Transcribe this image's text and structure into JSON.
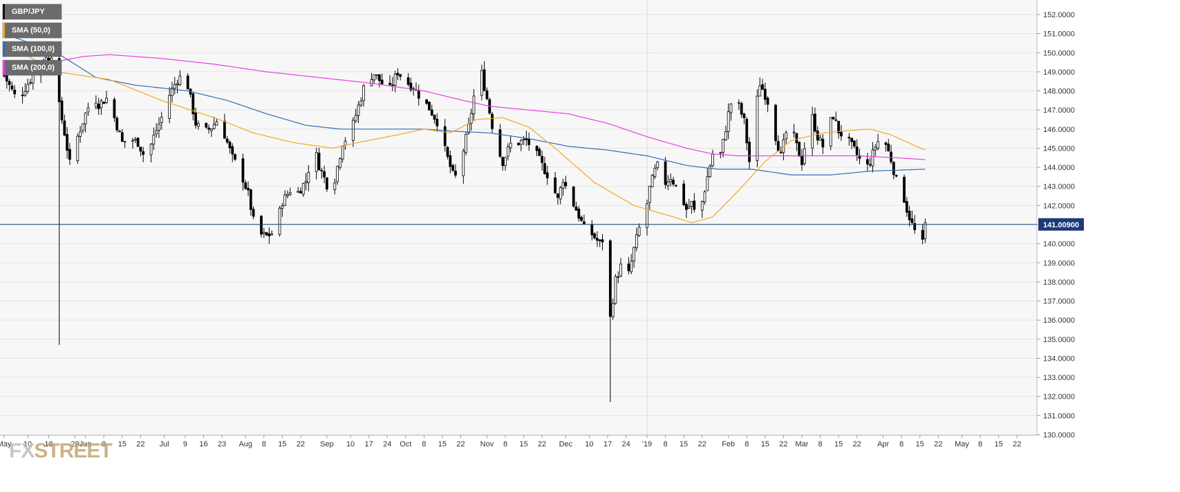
{
  "chart_data": {
    "type": "candlestick",
    "symbol": "GBP/JPY",
    "last_price": "141.00900",
    "ylim": [
      130,
      152
    ],
    "y_ticks": [
      "152.0000",
      "151.0000",
      "150.0000",
      "149.0000",
      "148.0000",
      "147.0000",
      "146.0000",
      "145.0000",
      "144.0000",
      "143.0000",
      "142.0000",
      "141.0000",
      "140.0000",
      "139.0000",
      "138.0000",
      "137.0000",
      "136.0000",
      "135.0000",
      "134.0000",
      "133.0000",
      "132.0000",
      "131.0000",
      "130.0000"
    ],
    "x_ticks": [
      "May",
      "10",
      "18",
      "28",
      "Jun",
      "8",
      "15",
      "22",
      "Jul",
      "9",
      "16",
      "23",
      "Aug",
      "8",
      "15",
      "22",
      "Sep",
      "10",
      "17",
      "24",
      "Oct",
      "8",
      "15",
      "22",
      "Nov",
      "8",
      "15",
      "22",
      "Dec",
      "10",
      "17",
      "24",
      "'19",
      "8",
      "15",
      "22",
      "Feb",
      "8",
      "15",
      "22",
      "Mar",
      "8",
      "15",
      "22",
      "Apr",
      "8",
      "15",
      "22",
      "May",
      "8",
      "15",
      "22"
    ],
    "x_tick_days": [
      0,
      9,
      17,
      27,
      31,
      38,
      45,
      52,
      61,
      69,
      76,
      83,
      92,
      99,
      106,
      113,
      123,
      132,
      139,
      146,
      153,
      160,
      167,
      174,
      184,
      191,
      198,
      205,
      214,
      223,
      230,
      237,
      245,
      252,
      259,
      266,
      276,
      283,
      290,
      297,
      304,
      311,
      318,
      325,
      335,
      342,
      349,
      356,
      365,
      372,
      379,
      386
    ],
    "date_range": [
      "May 2018",
      "May 22 2019"
    ],
    "series": [
      {
        "name": "GBP/JPY",
        "values": "daily OHLC candles"
      },
      {
        "name": "SMA (50,0)",
        "color": "#f5a623"
      },
      {
        "name": "SMA (100,0)",
        "color": "#2f6db5"
      },
      {
        "name": "SMA (200,0)",
        "color": "#e83ee8"
      }
    ],
    "price_anchors": [
      [
        0,
        148.8
      ],
      [
        5,
        147.5
      ],
      [
        10,
        148.6
      ],
      [
        14,
        149.5
      ],
      [
        17,
        149.8
      ],
      [
        19,
        150.1
      ],
      [
        20,
        149.0
      ],
      [
        21,
        147.2
      ],
      [
        23,
        145.8
      ],
      [
        25,
        144.2
      ],
      [
        28,
        145.6
      ],
      [
        31,
        146.8
      ],
      [
        34,
        147.8
      ],
      [
        36,
        147.3
      ],
      [
        39,
        147.6
      ],
      [
        42,
        146.6
      ],
      [
        45,
        145.3
      ],
      [
        48,
        145.5
      ],
      [
        51,
        145.3
      ],
      [
        54,
        144.4
      ],
      [
        57,
        145.6
      ],
      [
        60,
        146.6
      ],
      [
        63,
        147.8
      ],
      [
        66,
        148.6
      ],
      [
        69,
        148.9
      ],
      [
        71,
        147.6
      ],
      [
        73,
        146.3
      ],
      [
        76,
        145.8
      ],
      [
        79,
        146.1
      ],
      [
        82,
        146.6
      ],
      [
        84,
        145.7
      ],
      [
        87,
        144.5
      ],
      [
        90,
        143.8
      ],
      [
        93,
        142.6
      ],
      [
        95,
        141.2
      ],
      [
        97,
        140.5
      ],
      [
        100,
        140.4
      ],
      [
        103,
        140.6
      ],
      [
        106,
        142.2
      ],
      [
        109,
        142.8
      ],
      [
        112,
        142.7
      ],
      [
        115,
        143.3
      ],
      [
        118,
        145.1
      ],
      [
        120,
        144.1
      ],
      [
        123,
        143.1
      ],
      [
        126,
        143.4
      ],
      [
        129,
        145.3
      ],
      [
        132,
        145.8
      ],
      [
        135,
        147.2
      ],
      [
        138,
        148.6
      ],
      [
        141,
        148.9
      ],
      [
        144,
        148.4
      ],
      [
        147,
        148.1
      ],
      [
        150,
        149.0
      ],
      [
        153,
        148.5
      ],
      [
        156,
        148.2
      ],
      [
        159,
        147.6
      ],
      [
        162,
        147.1
      ],
      [
        165,
        146.4
      ],
      [
        168,
        144.9
      ],
      [
        171,
        143.6
      ],
      [
        173,
        143.4
      ],
      [
        175,
        144.9
      ],
      [
        177,
        146.1
      ],
      [
        179,
        147.7
      ],
      [
        181,
        148.6
      ],
      [
        182,
        148.9
      ],
      [
        184,
        147.6
      ],
      [
        186,
        146.2
      ],
      [
        188,
        145.0
      ],
      [
        190,
        144.3
      ],
      [
        193,
        145.2
      ],
      [
        196,
        145.3
      ],
      [
        199,
        145.4
      ],
      [
        202,
        144.9
      ],
      [
        205,
        144.1
      ],
      [
        208,
        143.4
      ],
      [
        211,
        142.3
      ],
      [
        213,
        143.4
      ],
      [
        215,
        142.6
      ],
      [
        218,
        141.8
      ],
      [
        221,
        140.8
      ],
      [
        224,
        140.5
      ],
      [
        227,
        140.0
      ],
      [
        229,
        140.4
      ],
      [
        230,
        139.2
      ],
      [
        231,
        136.1
      ],
      [
        233,
        138.1
      ],
      [
        235,
        138.8
      ],
      [
        238,
        138.4
      ],
      [
        240,
        139.7
      ],
      [
        242,
        140.8
      ],
      [
        244,
        141.3
      ],
      [
        246,
        142.9
      ],
      [
        248,
        143.8
      ],
      [
        250,
        144.3
      ],
      [
        252,
        143.2
      ],
      [
        254,
        143.5
      ],
      [
        256,
        143.0
      ],
      [
        258,
        142.5
      ],
      [
        260,
        141.8
      ],
      [
        262,
        142.1
      ],
      [
        264,
        141.3
      ],
      [
        266,
        142.2
      ],
      [
        268,
        143.5
      ],
      [
        270,
        144.7
      ],
      [
        272,
        144.1
      ],
      [
        274,
        145.3
      ],
      [
        276,
        146.8
      ],
      [
        278,
        147.9
      ],
      [
        280,
        147.2
      ],
      [
        282,
        146.4
      ],
      [
        284,
        144.3
      ],
      [
        286,
        146.7
      ],
      [
        288,
        148.4
      ],
      [
        290,
        147.8
      ],
      [
        292,
        147.1
      ],
      [
        294,
        145.6
      ],
      [
        296,
        144.6
      ],
      [
        298,
        145.8
      ],
      [
        300,
        146.1
      ],
      [
        302,
        145.1
      ],
      [
        304,
        144.3
      ],
      [
        306,
        145.8
      ],
      [
        308,
        146.6
      ],
      [
        310,
        145.6
      ],
      [
        312,
        145.1
      ],
      [
        314,
        146.1
      ],
      [
        316,
        146.7
      ],
      [
        318,
        145.9
      ],
      [
        320,
        145.6
      ],
      [
        322,
        145.3
      ],
      [
        324,
        144.9
      ],
      [
        326,
        144.4
      ],
      [
        328,
        143.8
      ],
      [
        330,
        144.3
      ],
      [
        332,
        145.1
      ],
      [
        334,
        145.6
      ],
      [
        336,
        145.2
      ],
      [
        338,
        144.4
      ],
      [
        340,
        143.3
      ],
      [
        342,
        142.9
      ],
      [
        344,
        141.8
      ],
      [
        346,
        141.0
      ],
      [
        348,
        140.3
      ],
      [
        350,
        140.0
      ],
      [
        351,
        141.0
      ]
    ],
    "sma50": [
      [
        0,
        150.5
      ],
      [
        20,
        149.0
      ],
      [
        40,
        148.6
      ],
      [
        60,
        147.5
      ],
      [
        80,
        146.6
      ],
      [
        95,
        145.8
      ],
      [
        110,
        145.3
      ],
      [
        125,
        145.0
      ],
      [
        135,
        145.3
      ],
      [
        150,
        145.7
      ],
      [
        160,
        146.0
      ],
      [
        170,
        145.8
      ],
      [
        180,
        146.5
      ],
      [
        190,
        146.6
      ],
      [
        200,
        146.1
      ],
      [
        210,
        145.0
      ],
      [
        225,
        143.2
      ],
      [
        240,
        142.0
      ],
      [
        255,
        141.4
      ],
      [
        262,
        141.1
      ],
      [
        270,
        141.4
      ],
      [
        280,
        142.8
      ],
      [
        290,
        144.3
      ],
      [
        300,
        145.4
      ],
      [
        312,
        145.8
      ],
      [
        320,
        145.9
      ],
      [
        330,
        146.0
      ],
      [
        338,
        145.7
      ],
      [
        346,
        145.2
      ],
      [
        351,
        144.9
      ]
    ],
    "sma100": [
      [
        0,
        151.0
      ],
      [
        20,
        150.0
      ],
      [
        35,
        148.7
      ],
      [
        50,
        148.3
      ],
      [
        70,
        148.0
      ],
      [
        85,
        147.5
      ],
      [
        100,
        146.8
      ],
      [
        115,
        146.2
      ],
      [
        128,
        146.0
      ],
      [
        140,
        146.0
      ],
      [
        160,
        146.0
      ],
      [
        170,
        145.9
      ],
      [
        185,
        145.8
      ],
      [
        200,
        145.5
      ],
      [
        215,
        145.1
      ],
      [
        230,
        144.9
      ],
      [
        245,
        144.6
      ],
      [
        260,
        144.1
      ],
      [
        272,
        143.9
      ],
      [
        285,
        143.9
      ],
      [
        300,
        143.6
      ],
      [
        315,
        143.6
      ],
      [
        330,
        143.8
      ],
      [
        351,
        143.9
      ]
    ],
    "sma200": [
      [
        0,
        149.3
      ],
      [
        15,
        149.4
      ],
      [
        30,
        149.8
      ],
      [
        40,
        149.9
      ],
      [
        60,
        149.7
      ],
      [
        80,
        149.4
      ],
      [
        100,
        149.0
      ],
      [
        120,
        148.7
      ],
      [
        140,
        148.4
      ],
      [
        160,
        148.0
      ],
      [
        175,
        147.5
      ],
      [
        185,
        147.2
      ],
      [
        200,
        147.0
      ],
      [
        215,
        146.8
      ],
      [
        230,
        146.3
      ],
      [
        245,
        145.6
      ],
      [
        260,
        145.0
      ],
      [
        270,
        144.7
      ],
      [
        280,
        144.6
      ],
      [
        295,
        144.6
      ],
      [
        310,
        144.6
      ],
      [
        325,
        144.6
      ],
      [
        340,
        144.5
      ],
      [
        351,
        144.4
      ]
    ]
  },
  "legend": {
    "symbol_label": "GBP/JPY",
    "sma50_label": "SMA (50,0)",
    "sma100_label": "SMA (100,0)",
    "sma200_label": "SMA (200,0)"
  },
  "logo": {
    "part1": "FX",
    "part2": "STREET"
  },
  "colors": {
    "background": "#f7f7f7",
    "grid": "#e3e3e3",
    "candle_up": "#ffffff",
    "candle_down": "#000000",
    "price_line": "#1f3a7a",
    "price_label_bg": "#1f3a7a",
    "sma50": "#f5a623",
    "sma100": "#2f6db5",
    "sma200": "#e83ee8"
  }
}
